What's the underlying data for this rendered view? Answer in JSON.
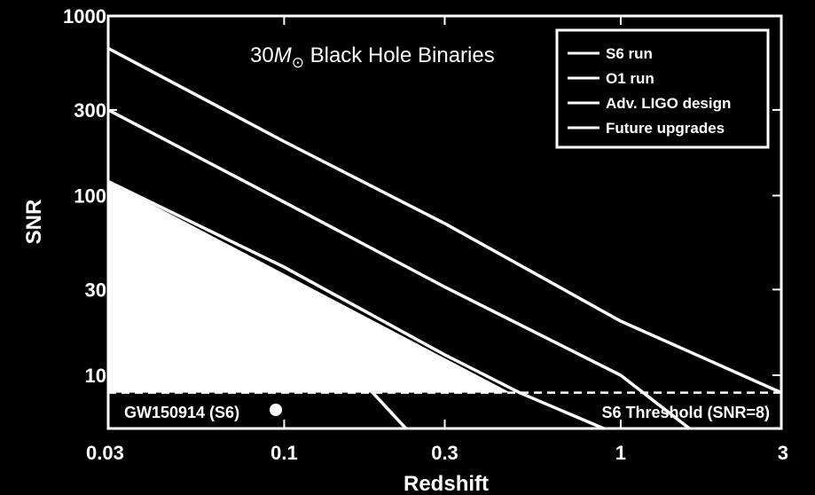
{
  "chart_data": {
    "type": "line",
    "title": "30",
    "title_symbol": "M",
    "title_subscript": "⊙",
    "title_rest": " Black Hole Binaries",
    "xlabel": "Redshift",
    "ylabel": "SNR",
    "xscale": "log",
    "yscale": "log",
    "xlim": [
      0.03,
      3
    ],
    "ylim": [
      5,
      1000
    ],
    "x_ticks": [
      0.03,
      0.1,
      0.3,
      1,
      3
    ],
    "x_tick_labels": [
      "0.03",
      "0.1",
      "0.3",
      "1",
      "3"
    ],
    "y_ticks": [
      10,
      30,
      100,
      300,
      1000
    ],
    "y_tick_labels": [
      "10",
      "30",
      "100",
      "300",
      "1000"
    ],
    "legend_position": "top-right",
    "series": [
      {
        "name": "S6 run",
        "x": [
          0.03,
          0.06,
          0.1,
          0.13,
          0.23
        ],
        "y": [
          120,
          50,
          24,
          16,
          5
        ]
      },
      {
        "name": "O1 run",
        "x": [
          0.03,
          0.1,
          0.3,
          0.5,
          0.89
        ],
        "y": [
          120,
          40,
          13,
          8,
          5
        ]
      },
      {
        "name": "Adv. LIGO design",
        "x": [
          0.03,
          0.1,
          0.3,
          1,
          1.6
        ],
        "y": [
          300,
          92,
          31,
          10,
          5
        ]
      },
      {
        "name": "Future upgrades",
        "x": [
          0.03,
          0.1,
          0.3,
          1,
          3
        ],
        "y": [
          660,
          200,
          70,
          20,
          8
        ]
      }
    ],
    "threshold": {
      "label": "S6 Threshold (SNR=8)",
      "y": 8
    },
    "event": {
      "label": "GW150914 (S6)",
      "x": 0.09,
      "y": 6.5
    }
  }
}
